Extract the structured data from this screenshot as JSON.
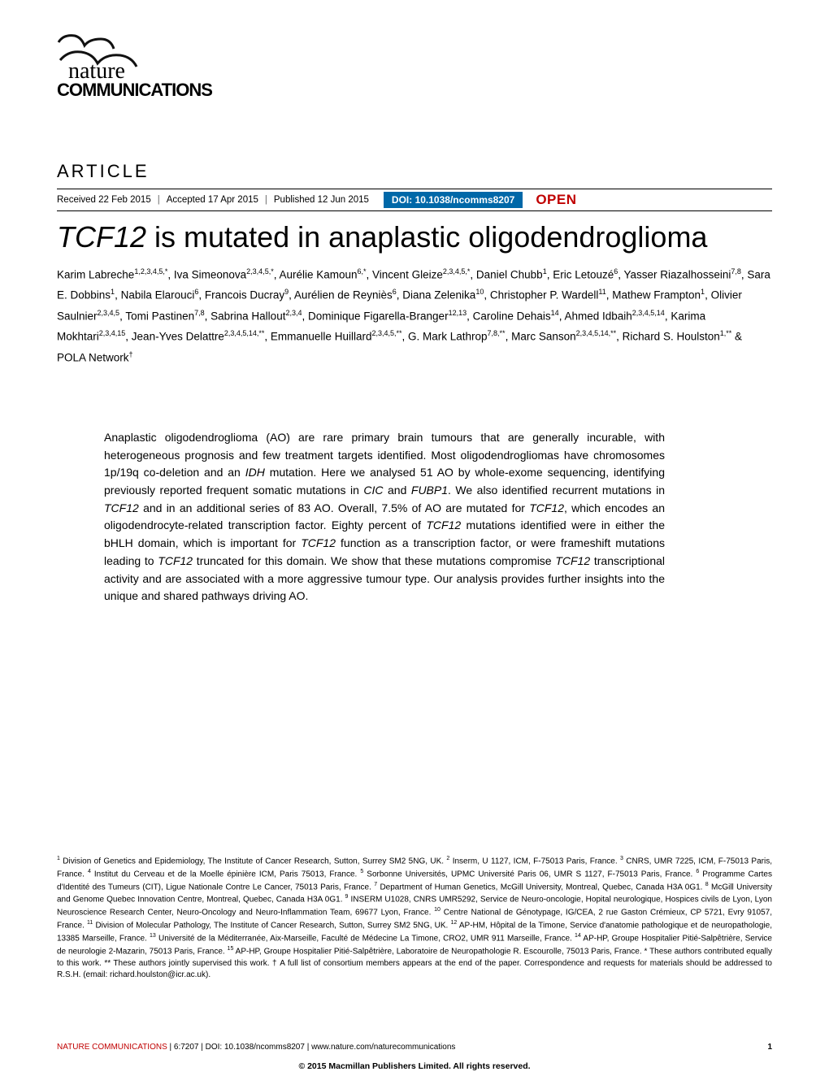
{
  "journal": {
    "logo_line1": "nature",
    "logo_line2": "COMMUNICATIONS"
  },
  "article_label": "ARTICLE",
  "meta": {
    "received": "Received 22 Feb 2015",
    "accepted": "Accepted 17 Apr 2015",
    "published": "Published 12 Jun 2015",
    "doi": "DOI: 10.1038/ncomms8207",
    "open": "OPEN",
    "sep": "|"
  },
  "title": {
    "gene": "TCF12",
    "rest": " is mutated in anaplastic oligodendroglioma"
  },
  "authors_html": "Karim Labreche<sup>1,2,3,4,5,*</sup>, Iva Simeonova<sup>2,3,4,5,*</sup>, Aurélie Kamoun<sup>6,*</sup>, Vincent Gleize<sup>2,3,4,5,*</sup>, Daniel Chubb<sup>1</sup>, Eric Letouzé<sup>6</sup>, Yasser Riazalhosseini<sup>7,8</sup>, Sara E. Dobbins<sup>1</sup>, Nabila Elarouci<sup>6</sup>, Francois Ducray<sup>9</sup>, Aurélien de Reyniès<sup>6</sup>, Diana Zelenika<sup>10</sup>, Christopher P. Wardell<sup>11</sup>, Mathew Frampton<sup>1</sup>, Olivier Saulnier<sup>2,3,4,5</sup>, Tomi Pastinen<sup>7,8</sup>, Sabrina Hallout<sup>2,3,4</sup>, Dominique Figarella-Branger<sup>12,13</sup>, Caroline Dehais<sup>14</sup>, Ahmed Idbaih<sup>2,3,4,5,14</sup>, Karima Mokhtari<sup>2,3,4,15</sup>, Jean-Yves Delattre<sup>2,3,4,5,14,**</sup>, Emmanuelle Huillard<sup>2,3,4,5,**</sup>, G. Mark Lathrop<sup>7,8,**</sup>, Marc Sanson<sup>2,3,4,5,14,**</sup>, Richard S. Houlston<sup>1,**</sup> & POLA Network<sup>†</sup>",
  "abstract": "Anaplastic oligodendroglioma (AO) are rare primary brain tumours that are generally incurable, with heterogeneous prognosis and few treatment targets identified. Most oligodendrogliomas have chromosomes 1p/19q co-deletion and an IDH mutation. Here we analysed 51 AO by whole-exome sequencing, identifying previously reported frequent somatic mutations in CIC and FUBP1. We also identified recurrent mutations in TCF12 and in an additional series of 83 AO. Overall, 7.5% of AO are mutated for TCF12, which encodes an oligodendrocyte-related transcription factor. Eighty percent of TCF12 mutations identified were in either the bHLH domain, which is important for TCF12 function as a transcription factor, or were frameshift mutations leading to TCF12 truncated for this domain. We show that these mutations compromise TCF12 transcriptional activity and are associated with a more aggressive tumour type. Our analysis provides further insights into the unique and shared pathways driving AO.",
  "affiliations_html": "<sup>1</sup> Division of Genetics and Epidemiology, The Institute of Cancer Research, Sutton, Surrey SM2 5NG, UK. <sup>2</sup> Inserm, U 1127, ICM, F-75013 Paris, France. <sup>3</sup> CNRS, UMR 7225, ICM, F-75013 Paris, France. <sup>4</sup> Institut du Cerveau et de la Moelle épinière ICM, Paris 75013, France. <sup>5</sup> Sorbonne Universités, UPMC Université Paris 06, UMR S 1127, F-75013 Paris, France. <sup>6</sup> Programme Cartes d'Identité des Tumeurs (CIT), Ligue Nationale Contre Le Cancer, 75013 Paris, France. <sup>7</sup> Department of Human Genetics, McGill University, Montreal, Quebec, Canada H3A 0G1. <sup>8</sup> McGill University and Genome Quebec Innovation Centre, Montreal, Quebec, Canada H3A 0G1. <sup>9</sup> INSERM U1028, CNRS UMR5292, Service de Neuro-oncologie, Hopital neurologique, Hospices civils de Lyon, Lyon Neuroscience Research Center, Neuro-Oncology and Neuro-Inflammation Team, 69677 Lyon, France. <sup>10</sup> Centre National de Génotypage, IG/CEA, 2 rue Gaston Crémieux, CP 5721, Evry 91057, France. <sup>11</sup> Division of Molecular Pathology, The Institute of Cancer Research, Sutton, Surrey SM2 5NG, UK. <sup>12</sup> AP-HM, Hôpital de la Timone, Service d'anatomie pathologique et de neuropathologie, 13385 Marseille, France. <sup>13</sup> Université de la Méditerranée, Aix-Marseille, Faculté de Médecine La Timone, CRO2, UMR 911 Marseille, France. <sup>14</sup> AP-HP, Groupe Hospitalier Pitié-Salpêtrière, Service de neurologie 2-Mazarin, 75013 Paris, France. <sup>15</sup> AP-HP, Groupe Hospitalier Pitié-Salpêtrière, Laboratoire de Neuropathologie R. Escourolle, 75013 Paris, France. * These authors contributed equally to this work. ** These authors jointly supervised this work. † A full list of consortium members appears at the end of the paper. Correspondence and requests for materials should be addressed to R.S.H. (email: richard.houlston@icr.ac.uk).",
  "footer": {
    "citation_red": "NATURE COMMUNICATIONS",
    "citation_black": " | 6:7207 | DOI: 10.1038/ncomms8207 | www.nature.com/naturecommunications",
    "page": "1",
    "copyright": "© 2015 Macmillan Publishers Limited. All rights reserved."
  },
  "colors": {
    "doi_bg": "#0068a8",
    "open_red": "#c00000",
    "footer_red": "#c00000"
  }
}
